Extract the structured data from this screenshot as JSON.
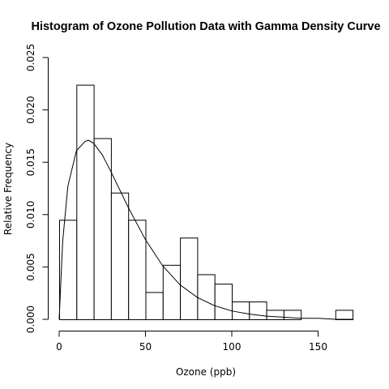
{
  "chart_data": {
    "type": "bar",
    "title": "Histogram of Ozone Pollution Data with Gamma Density Curve",
    "xlabel": "Ozone (ppb)",
    "ylabel": "Relative Frequency",
    "xlim": [
      0,
      170
    ],
    "ylim": [
      0,
      0.025
    ],
    "x_ticks": [
      0,
      50,
      100,
      150
    ],
    "y_ticks": [
      0.0,
      0.005,
      0.01,
      0.015,
      0.02,
      0.025
    ],
    "x_tick_labels": [
      "0",
      "50",
      "100",
      "150"
    ],
    "y_tick_labels": [
      "0.000",
      "0.005",
      "0.010",
      "0.015",
      "0.020",
      "0.025"
    ],
    "bins": [
      {
        "start": 0,
        "end": 10,
        "value": 0.0095
      },
      {
        "start": 10,
        "end": 20,
        "value": 0.0224
      },
      {
        "start": 20,
        "end": 30,
        "value": 0.0173
      },
      {
        "start": 30,
        "end": 40,
        "value": 0.0121
      },
      {
        "start": 40,
        "end": 50,
        "value": 0.0095
      },
      {
        "start": 50,
        "end": 60,
        "value": 0.0026
      },
      {
        "start": 60,
        "end": 70,
        "value": 0.0052
      },
      {
        "start": 70,
        "end": 80,
        "value": 0.0078
      },
      {
        "start": 80,
        "end": 90,
        "value": 0.0043
      },
      {
        "start": 90,
        "end": 100,
        "value": 0.0034
      },
      {
        "start": 100,
        "end": 110,
        "value": 0.0017
      },
      {
        "start": 110,
        "end": 120,
        "value": 0.0017
      },
      {
        "start": 120,
        "end": 130,
        "value": 0.0009
      },
      {
        "start": 130,
        "end": 140,
        "value": 0.0009
      },
      {
        "start": 140,
        "end": 150,
        "value": 0.0
      },
      {
        "start": 150,
        "end": 160,
        "value": 0.0
      },
      {
        "start": 160,
        "end": 170,
        "value": 0.0009
      }
    ],
    "density_curve": {
      "distribution": "gamma",
      "shape": 1.95,
      "scale": 18.5,
      "x": [
        0,
        2,
        5,
        10,
        15,
        17,
        20,
        25,
        30,
        40,
        50,
        60,
        70,
        80,
        90,
        100,
        110,
        120,
        130,
        140,
        150,
        160,
        170
      ],
      "y": [
        0.0,
        0.0074,
        0.0127,
        0.0161,
        0.017,
        0.0171,
        0.0168,
        0.0157,
        0.0141,
        0.0107,
        0.0076,
        0.0051,
        0.0033,
        0.0021,
        0.0013,
        0.0008,
        0.0005,
        0.0003,
        0.0002,
        0.0001,
        0.0001,
        0.0,
        0.0
      ]
    }
  }
}
